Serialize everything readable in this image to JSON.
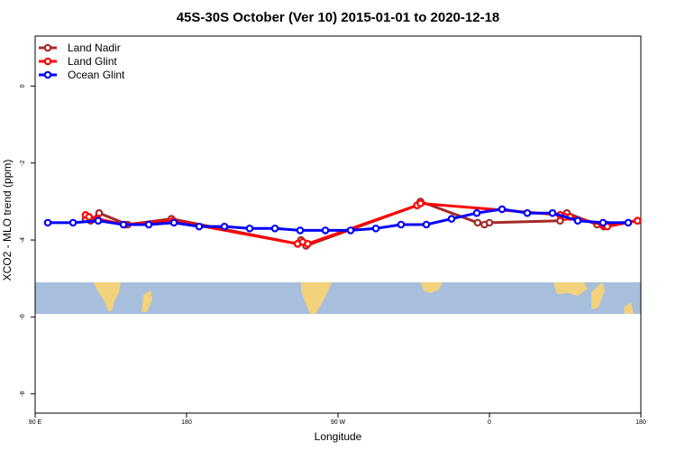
{
  "chart_data": {
    "type": "line",
    "title": "45S-30S October (Ver 10)   2015-01-01 to 2020-12-18",
    "xlabel": "Longitude",
    "ylabel": "XCO2 - MLO trend (ppm)",
    "xlim": [
      90,
      450
    ],
    "ylim": [
      -8.5,
      1.3
    ],
    "x_ticks": [
      {
        "value": 90,
        "label": "90 E"
      },
      {
        "value": 180,
        "label": "180"
      },
      {
        "value": 270,
        "label": "90 W"
      },
      {
        "value": 360,
        "label": "0"
      },
      {
        "value": 450,
        "label": "180"
      }
    ],
    "y_ticks": [
      {
        "value": 0,
        "label": "0"
      },
      {
        "value": -2,
        "label": "-2"
      },
      {
        "value": -4,
        "label": "-4"
      },
      {
        "value": -6,
        "label": "-6"
      },
      {
        "value": -8,
        "label": "-8"
      }
    ],
    "legend_position": "top-left",
    "grid": false,
    "map_band": {
      "ocean_color": "#A8BEDD",
      "land_color": "#F2D27A"
    },
    "series": [
      {
        "name": "Land Nadir",
        "color": "#A52A2A",
        "x": [
          120,
          123,
          128,
          145,
          171,
          246,
          248,
          251,
          317,
          319,
          353,
          357,
          360,
          402,
          406,
          424,
          428,
          430,
          448
        ],
        "y": [
          -3.45,
          -3.5,
          -3.3,
          -3.6,
          -3.45,
          -4.1,
          -4.0,
          -4.15,
          -3.1,
          -3.0,
          -3.55,
          -3.6,
          -3.55,
          -3.5,
          -3.3,
          -3.6,
          -3.65,
          -3.6,
          -3.5
        ]
      },
      {
        "name": "Land Glint",
        "color": "#FF0000",
        "x": [
          120,
          122,
          127,
          143,
          172,
          246,
          249,
          252,
          317,
          319,
          402,
          405,
          408,
          427,
          430,
          448
        ],
        "y": [
          -3.35,
          -3.4,
          -3.45,
          -3.6,
          -3.5,
          -4.1,
          -4.05,
          -4.1,
          -3.1,
          -3.05,
          -3.35,
          -3.4,
          -3.4,
          -3.6,
          -3.65,
          -3.5
        ]
      },
      {
        "name": "Ocean Glint",
        "color": "#0000FF",
        "x": [
          97.5,
          112.5,
          127.5,
          142.5,
          157.5,
          172.5,
          187.5,
          202.5,
          217.5,
          232.5,
          247.5,
          262.5,
          277.5,
          292.5,
          307.5,
          322.5,
          337.5,
          352.5,
          367.5,
          382.5,
          397.5,
          412.5,
          427.5,
          442.5
        ],
        "y": [
          -3.55,
          -3.55,
          -3.5,
          -3.6,
          -3.6,
          -3.55,
          -3.65,
          -3.65,
          -3.7,
          -3.7,
          -3.75,
          -3.75,
          -3.75,
          -3.7,
          -3.6,
          -3.6,
          -3.45,
          -3.3,
          -3.2,
          -3.3,
          -3.3,
          -3.5,
          -3.55,
          -3.55
        ]
      }
    ]
  }
}
